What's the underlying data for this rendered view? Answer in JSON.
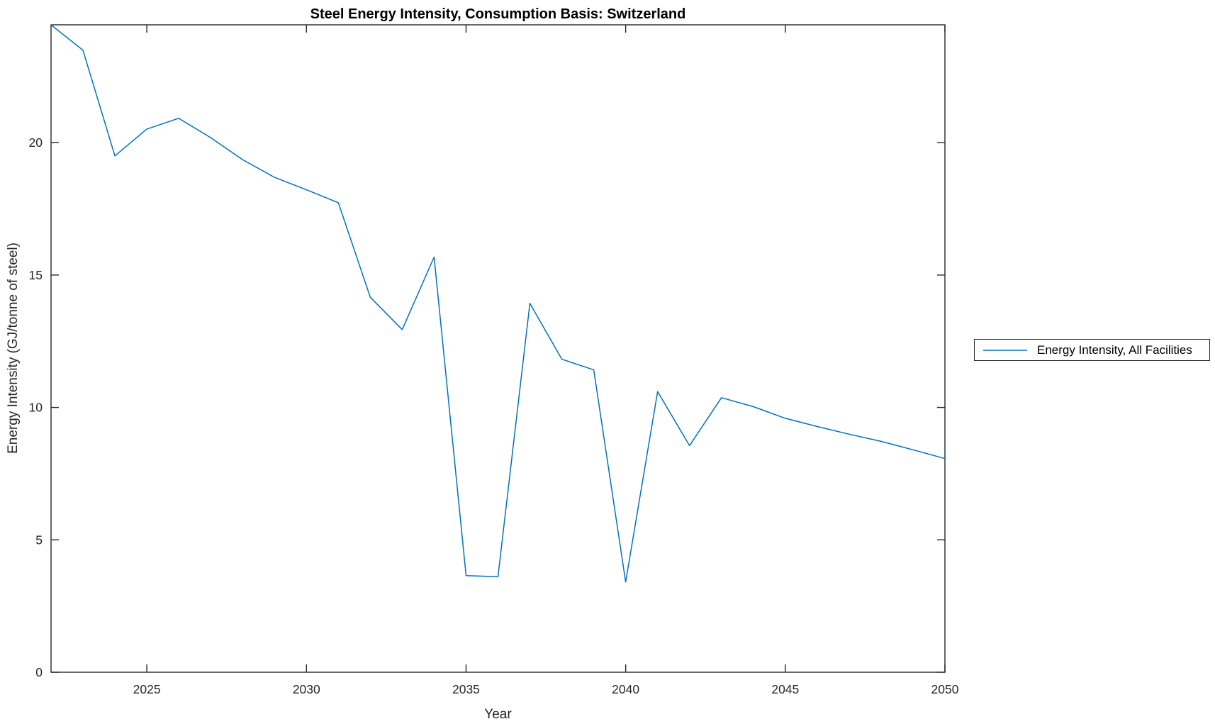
{
  "chart_data": {
    "type": "line",
    "title": "Steel Energy Intensity, Consumption Basis: Switzerland",
    "xlabel": "Year",
    "ylabel": "Energy Intensity (GJ/tonne of steel)",
    "xlim": [
      2022,
      2050
    ],
    "ylim": [
      0,
      24.45
    ],
    "x_ticks": [
      2025,
      2030,
      2035,
      2040,
      2045,
      2050
    ],
    "y_ticks": [
      0,
      5,
      10,
      15,
      20
    ],
    "grid": false,
    "box": true,
    "tick_direction": "in",
    "axis_color": "#262626",
    "background_color": "#ffffff",
    "legend_position": "right-outside",
    "x": [
      2022,
      2023,
      2024,
      2025,
      2026,
      2027,
      2028,
      2029,
      2030,
      2031,
      2032,
      2033,
      2034,
      2035,
      2036,
      2037,
      2038,
      2039,
      2040,
      2041,
      2042,
      2043,
      2044,
      2045,
      2046,
      2047,
      2048,
      2049,
      2050
    ],
    "series": [
      {
        "name": "Energy Intensity, All Facilities",
        "color": "#0072BD",
        "values": [
          24.45,
          23.49,
          19.5,
          20.51,
          20.92,
          20.19,
          19.36,
          18.69,
          18.22,
          17.73,
          14.16,
          12.94,
          15.68,
          3.65,
          3.61,
          13.93,
          11.82,
          11.42,
          3.41,
          10.6,
          8.56,
          10.37,
          10.03,
          9.59,
          9.28,
          8.99,
          8.72,
          8.4,
          8.07
        ]
      }
    ]
  },
  "legend": {
    "items": [
      {
        "label": "Energy Intensity, All Facilities",
        "color": "#0072BD"
      }
    ]
  }
}
